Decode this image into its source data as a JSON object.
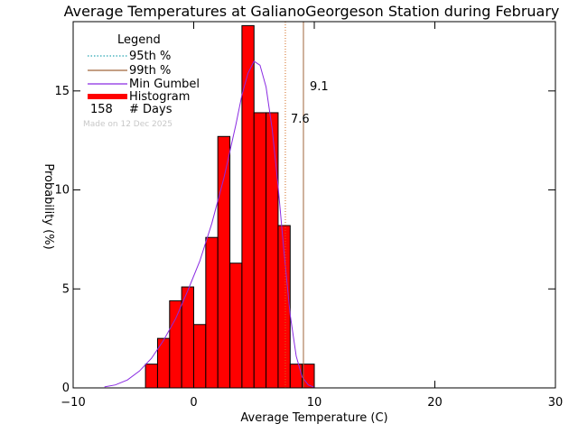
{
  "chart_data": {
    "type": "bar",
    "title": "Average Temperatures at GalianoGeorgeson Station during February",
    "xlabel": "Average Temperature (C)",
    "ylabel": "Probability (%)",
    "xlim": [
      -10,
      30
    ],
    "ylim": [
      0,
      18.5
    ],
    "x_ticks": [
      -10,
      0,
      10,
      20,
      30
    ],
    "y_ticks": [
      0,
      5,
      10,
      15
    ],
    "grid": false,
    "legend_position": "top-left",
    "legend": {
      "title": "Legend",
      "entries": [
        {
          "label": "95th %",
          "style": "dotted",
          "color": "#2aa6b5"
        },
        {
          "label": "99th %",
          "style": "solid",
          "color": "#a0663a"
        },
        {
          "label": "Min Gumbel",
          "style": "solid",
          "color": "#8a2be2"
        },
        {
          "label": "Histogram",
          "style": "thick",
          "color": "#ff0000"
        }
      ],
      "days_count": "158",
      "days_label": "# Days"
    },
    "made_on": "Made on 12 Dec 2025",
    "bin_width": 1,
    "histogram": {
      "bin_starts": [
        -4,
        -3,
        -2,
        -1,
        0,
        1,
        2,
        3,
        4,
        5,
        6,
        7,
        8,
        9
      ],
      "values": [
        1.2,
        2.5,
        4.4,
        5.1,
        3.2,
        7.6,
        12.7,
        6.3,
        18.3,
        13.9,
        13.9,
        8.2,
        1.2,
        1.2
      ],
      "color": "#ff0000"
    },
    "percentile_95": {
      "value": 7.6,
      "label": "7.6",
      "color": "#2aa6b5",
      "line_color": "#d2691e"
    },
    "percentile_99": {
      "value": 9.1,
      "label": "9.1",
      "color": "#a0663a"
    },
    "gumbel": {
      "color": "#8a2be2",
      "x": [
        -7.4,
        -6.5,
        -5.5,
        -4.5,
        -3.5,
        -2.5,
        -1.5,
        -0.5,
        0.5,
        1.5,
        2.5,
        3.5,
        4.0,
        4.5,
        5.0,
        5.5,
        6.0,
        6.5,
        7.0,
        7.5,
        8.0,
        8.5,
        9.0,
        9.5,
        10.0
      ],
      "y": [
        0.05,
        0.15,
        0.4,
        0.85,
        1.5,
        2.4,
        3.5,
        4.9,
        6.4,
        8.3,
        10.6,
        13.3,
        14.8,
        15.9,
        16.5,
        16.3,
        15.2,
        13.1,
        10.2,
        6.8,
        3.7,
        1.6,
        0.55,
        0.15,
        0.03
      ]
    }
  }
}
